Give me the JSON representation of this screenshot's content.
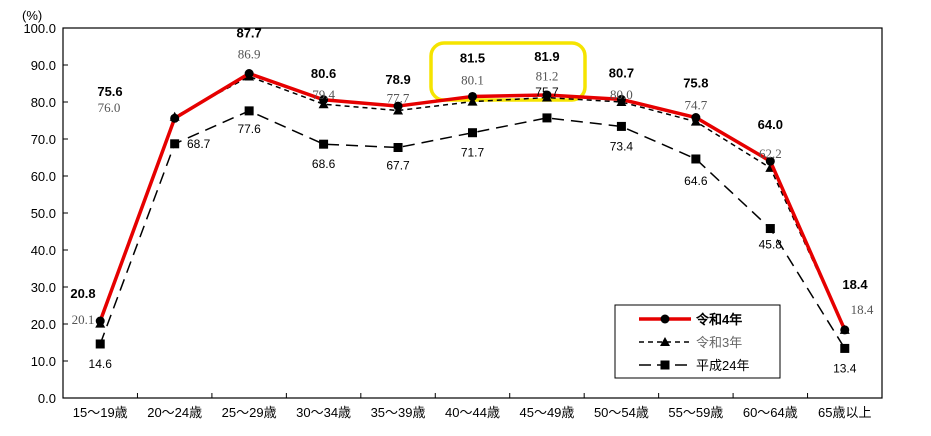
{
  "chart_data": {
    "type": "line",
    "title": "",
    "xlabel": "",
    "ylabel": "(%)",
    "ylim": [
      0,
      100
    ],
    "yticks": [
      "0.0",
      "10.0",
      "20.0",
      "30.0",
      "40.0",
      "50.0",
      "60.0",
      "70.0",
      "80.0",
      "90.0",
      "100.0"
    ],
    "grid": false,
    "legend_position": "lower-right inside plot",
    "categories": [
      "15～19歳",
      "20～24歳",
      "25～29歳",
      "30～34歳",
      "35～39歳",
      "40～44歳",
      "45～49歳",
      "50～54歳",
      "55～59歳",
      "60～64歳",
      "65歳以上"
    ],
    "series": [
      {
        "name": "令和4年",
        "values": [
          20.8,
          75.6,
          87.7,
          80.6,
          78.9,
          81.5,
          81.9,
          80.7,
          75.8,
          64.0,
          18.4
        ],
        "color": "#e60000",
        "line": "solid",
        "marker": "circle"
      },
      {
        "name": "令和3年",
        "values": [
          20.1,
          76.0,
          86.9,
          79.4,
          77.7,
          80.1,
          81.2,
          80.0,
          74.7,
          62.2,
          18.4
        ],
        "color": "#000000",
        "line": "short-dash",
        "marker": "triangle"
      },
      {
        "name": "平成24年",
        "values": [
          14.6,
          68.7,
          77.6,
          68.6,
          67.7,
          71.7,
          75.7,
          73.4,
          64.6,
          45.8,
          13.4
        ],
        "color": "#000000",
        "line": "long-dash",
        "marker": "square"
      }
    ],
    "annotations": [
      {
        "type": "highlight-box",
        "color": "#f5e400",
        "covers": [
          "40～44歳",
          "45～49歳"
        ]
      }
    ]
  },
  "axis": {
    "unit_label": "(%)"
  },
  "legend": {
    "items": [
      {
        "label": "令和4年"
      },
      {
        "label": "令和3年"
      },
      {
        "label": "平成24年"
      }
    ]
  }
}
